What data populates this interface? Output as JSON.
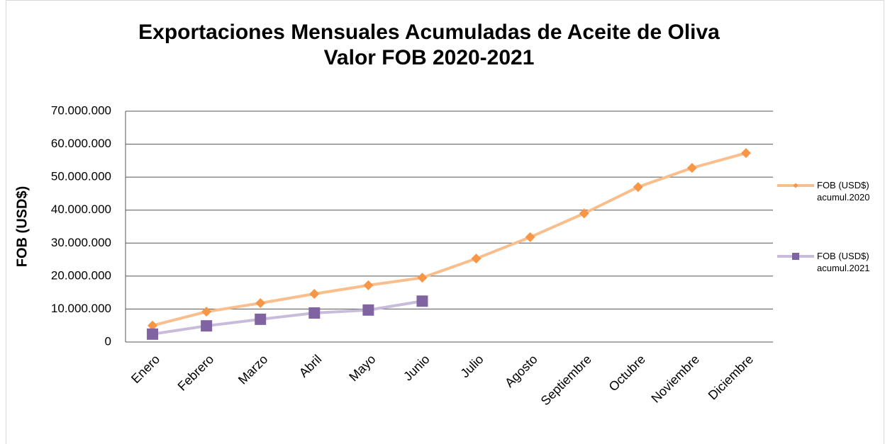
{
  "chart_data": {
    "type": "line",
    "title": "Exportaciones Mensuales Acumuladas de Aceite de Oliva\nValor FOB 2020-2021",
    "ylabel": "FOB (USD$)",
    "categories": [
      "Enero",
      "Febrero",
      "Marzo",
      "Abril",
      "Mayo",
      "Junio",
      "Julio",
      "Agosto",
      "Septiembre",
      "Octubre",
      "Noviembre",
      "Diciembre"
    ],
    "series": [
      {
        "name": "FOB (USD$) acumul.2020",
        "color": "#f9be8c",
        "marker_color": "#f79646",
        "marker": "diamond",
        "values": [
          5000000,
          9200000,
          11800000,
          14600000,
          17200000,
          19500000,
          25300000,
          31800000,
          39000000,
          47000000,
          52800000,
          57300000
        ]
      },
      {
        "name": "FOB (USD$) acumul.2021",
        "color": "#c9bcdb",
        "marker_color": "#8064a2",
        "marker": "square",
        "values": [
          2400000,
          4900000,
          6900000,
          8800000,
          9700000,
          12400000,
          null,
          null,
          null,
          null,
          null,
          null
        ]
      }
    ],
    "ylim": [
      0,
      70000000
    ],
    "yticks": [
      0,
      {
        "value": 10000000,
        "label": "10.000.000"
      },
      {
        "value": 20000000,
        "label": "20.000.000"
      },
      {
        "value": 30000000,
        "label": "30.000.000"
      },
      {
        "value": 40000000,
        "label": "40.000.000"
      },
      {
        "value": 50000000,
        "label": "50.000.000"
      },
      {
        "value": 60000000,
        "label": "60.000.000"
      },
      {
        "value": 70000000,
        "label": "70.000.000"
      }
    ],
    "grid": true,
    "legend": "right"
  }
}
